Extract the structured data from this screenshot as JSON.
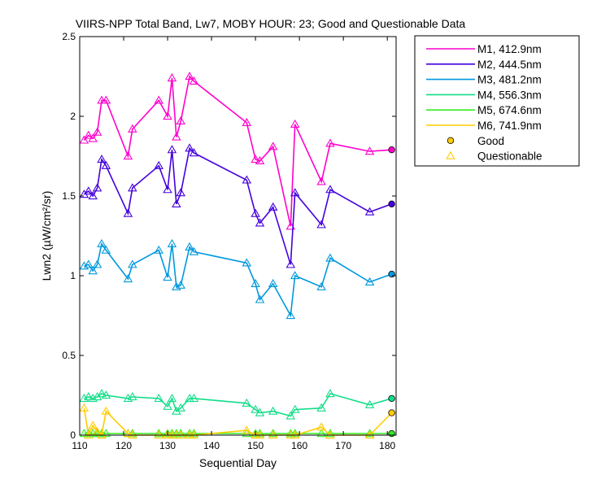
{
  "chart_data": {
    "type": "line",
    "title": "VIIRS-NPP Total Band, Lw7, MOBY HOUR: 23;  Good and Questionable Data",
    "xlabel": "Sequential Day",
    "ylabel": "Lwn2 (µW/cm²/sr)",
    "xlim": [
      110,
      182
    ],
    "ylim": [
      0,
      2.5
    ],
    "xticks": [
      110,
      120,
      130,
      140,
      150,
      160,
      170,
      180
    ],
    "xtick_labels": [
      "110",
      "120",
      "130",
      "140",
      "150",
      "160",
      "170",
      "180"
    ],
    "yticks": [
      0,
      0.5,
      1,
      1.5,
      2,
      2.5
    ],
    "ytick_labels": [
      "0",
      "0.5",
      "1",
      "1.5",
      "2",
      "2.5"
    ],
    "grid": false,
    "legend_position": "outside-top-right",
    "x": [
      111,
      112,
      113,
      114,
      115,
      116,
      121,
      122,
      128,
      130,
      131,
      132,
      133,
      135,
      136,
      148,
      150,
      151,
      154,
      158,
      159,
      165,
      167,
      176,
      181
    ],
    "series": [
      {
        "name": "M1, 412.9nm",
        "color": "#ff00cc",
        "values": [
          1.85,
          1.88,
          1.86,
          1.9,
          2.1,
          2.1,
          1.75,
          1.92,
          2.1,
          2.0,
          2.24,
          1.87,
          1.97,
          2.25,
          2.22,
          1.96,
          1.73,
          1.72,
          1.81,
          1.31,
          1.95,
          1.59,
          1.83,
          1.78,
          1.79
        ]
      },
      {
        "name": "M2, 444.5nm",
        "color": "#4400dd",
        "values": [
          1.51,
          1.53,
          1.5,
          1.55,
          1.73,
          1.69,
          1.39,
          1.55,
          1.69,
          1.54,
          1.79,
          1.45,
          1.52,
          1.8,
          1.77,
          1.6,
          1.39,
          1.33,
          1.43,
          1.07,
          1.52,
          1.32,
          1.54,
          1.4,
          1.45
        ]
      },
      {
        "name": "M3, 481.2nm",
        "color": "#0099dd",
        "values": [
          1.06,
          1.07,
          1.03,
          1.07,
          1.2,
          1.16,
          0.98,
          1.07,
          1.16,
          0.99,
          1.2,
          0.93,
          0.94,
          1.18,
          1.15,
          1.08,
          0.95,
          0.85,
          0.95,
          0.75,
          1.0,
          0.93,
          1.11,
          0.96,
          1.01
        ]
      },
      {
        "name": "M4, 556.3nm",
        "color": "#11dd88",
        "values": [
          0.23,
          0.24,
          0.23,
          0.24,
          0.26,
          0.25,
          0.23,
          0.24,
          0.23,
          0.18,
          0.23,
          0.15,
          0.17,
          0.23,
          0.23,
          0.2,
          0.16,
          0.14,
          0.15,
          0.12,
          0.16,
          0.17,
          0.26,
          0.19,
          0.23
        ]
      },
      {
        "name": "M5, 674.6nm",
        "color": "#33ee22",
        "values": [
          0.01,
          0.01,
          0.01,
          0.01,
          0.01,
          0.01,
          0.01,
          0.01,
          0.01,
          0.01,
          0.01,
          0.01,
          0.01,
          0.01,
          0.01,
          0.01,
          0.01,
          0.01,
          0.01,
          0.01,
          0.01,
          0.01,
          0.01,
          0.01,
          0.01
        ]
      },
      {
        "name": "M6, 741.9nm",
        "color": "#ffcc00",
        "values": [
          0.17,
          0.0,
          0.06,
          0.02,
          0.0,
          0.15,
          0.01,
          0.0,
          0.0,
          0.0,
          0.0,
          0.0,
          0.0,
          0.0,
          0.0,
          0.03,
          0.0,
          0.0,
          0.0,
          0.0,
          0.0,
          0.05,
          0.0,
          0.0,
          0.14
        ]
      }
    ],
    "good_index": [
      24
    ],
    "legend_markers": [
      {
        "label": "Good",
        "marker": "circle"
      },
      {
        "label": "Questionable",
        "marker": "triangle"
      }
    ]
  }
}
